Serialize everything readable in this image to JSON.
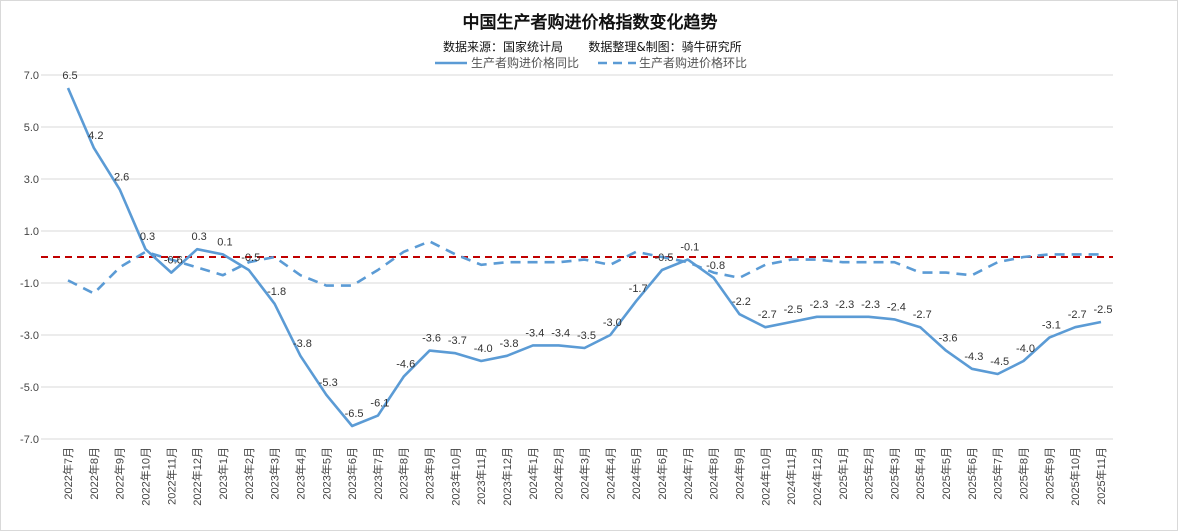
{
  "chart_data": {
    "type": "line",
    "title": "中国生产者购进价格指数变化趋势",
    "subtitle_source": "数据来源：国家统计局",
    "subtitle_credit": "数据整理&制图：骑牛研究所",
    "ylim": [
      -7,
      7
    ],
    "yticks": [
      "7.0",
      "5.0",
      "3.0",
      "1.0",
      "-1.0",
      "-3.0",
      "-5.0",
      "-7.0"
    ],
    "ytick_values": [
      7,
      5,
      3,
      1,
      -1,
      -3,
      -5,
      -7
    ],
    "grid": true,
    "legend_position": "top",
    "reference_line": {
      "value": 0,
      "color": "#c00000",
      "style": "dashed"
    },
    "categories": [
      "2022年7月",
      "2022年8月",
      "2022年9月",
      "2022年10月",
      "2022年11月",
      "2022年12月",
      "2023年1月",
      "2023年2月",
      "2023年3月",
      "2023年4月",
      "2023年5月",
      "2023年6月",
      "2023年7月",
      "2023年8月",
      "2023年9月",
      "2023年10月",
      "2023年11月",
      "2023年12月",
      "2024年1月",
      "2024年2月",
      "2024年3月",
      "2024年4月",
      "2024年5月",
      "2024年6月",
      "2024年7月",
      "2024年8月",
      "2024年9月",
      "2024年10月",
      "2024年11月",
      "2024年12月",
      "2025年1月",
      "2025年2月",
      "2025年3月",
      "2025年4月",
      "2025年5月",
      "2025年6月",
      "2025年7月",
      "2025年8月",
      "2025年9月",
      "2025年10月",
      "2025年11月"
    ],
    "series": [
      {
        "name": "生产者购进价格同比",
        "color": "#5b9bd5",
        "style": "solid",
        "labeled": true,
        "values": [
          6.5,
          4.2,
          2.6,
          0.3,
          -0.6,
          0.3,
          0.1,
          -0.5,
          -1.8,
          -3.8,
          -5.3,
          -6.5,
          -6.1,
          -4.6,
          -3.6,
          -3.7,
          -4.0,
          -3.8,
          -3.4,
          -3.4,
          -3.5,
          -3.0,
          -1.7,
          -0.5,
          -0.1,
          -0.8,
          -2.2,
          -2.7,
          -2.5,
          -2.3,
          -2.3,
          -2.3,
          -2.4,
          -2.7,
          -3.6,
          -4.3,
          -4.5,
          -4.0,
          -3.1,
          -2.7,
          -2.5
        ]
      },
      {
        "name": "生产者购进价格环比",
        "color": "#5b9bd5",
        "style": "dashed",
        "labeled": false,
        "values": [
          -0.9,
          -1.4,
          -0.4,
          0.2,
          -0.1,
          -0.4,
          -0.7,
          -0.2,
          0.0,
          -0.7,
          -1.1,
          -1.1,
          -0.5,
          0.2,
          0.6,
          0.1,
          -0.3,
          -0.2,
          -0.2,
          -0.2,
          -0.1,
          -0.3,
          0.2,
          0.0,
          -0.2,
          -0.6,
          -0.8,
          -0.3,
          -0.1,
          -0.1,
          -0.2,
          -0.2,
          -0.2,
          -0.6,
          -0.6,
          -0.7,
          -0.2,
          0.0,
          0.1,
          0.1,
          0.1
        ]
      }
    ]
  }
}
